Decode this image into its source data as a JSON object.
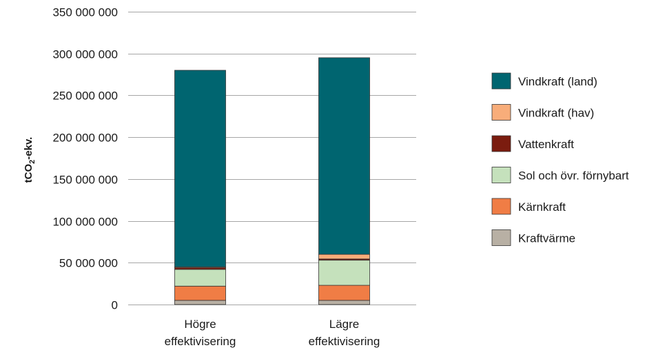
{
  "chart_data": {
    "type": "bar",
    "stacked": true,
    "ylabel_main": "tCO",
    "ylabel_sub": "2",
    "ylabel_tail": "-ekv.",
    "ylim": [
      0,
      350000000
    ],
    "yticks": [
      0,
      50000000,
      100000000,
      150000000,
      200000000,
      250000000,
      300000000,
      350000000
    ],
    "ytick_labels": [
      "0",
      "50 000 000",
      "100 000 000",
      "150 000 000",
      "200 000 000",
      "250 000 000",
      "300 000 000",
      "350 000 000"
    ],
    "categories": [
      [
        "Högre",
        "effektivisering"
      ],
      [
        "Lägre",
        "effektivisering"
      ]
    ],
    "series": [
      {
        "name": "Kraftvärme",
        "color": "#b8b0a4",
        "values": [
          5000000,
          5000000
        ]
      },
      {
        "name": "Kärnkraft",
        "color": "#f07d45",
        "values": [
          17000000,
          18000000
        ]
      },
      {
        "name": "Sol och övr. förnybart",
        "color": "#c5e1bc",
        "values": [
          20000000,
          30000000
        ]
      },
      {
        "name": "Vattenkraft",
        "color": "#7b1c0f",
        "values": [
          2000000,
          1500000
        ]
      },
      {
        "name": "Vindkraft (hav)",
        "color": "#f8ad7a",
        "values": [
          1000000,
          5500000
        ]
      },
      {
        "name": "Vindkraft (land)",
        "color": "#006570",
        "values": [
          235000000,
          235000000
        ]
      }
    ],
    "legend_order": [
      "Vindkraft (land)",
      "Vindkraft (hav)",
      "Vattenkraft",
      "Sol och övr. förnybart",
      "Kärnkraft",
      "Kraftvärme"
    ],
    "legend_position": "right",
    "grid": true
  }
}
